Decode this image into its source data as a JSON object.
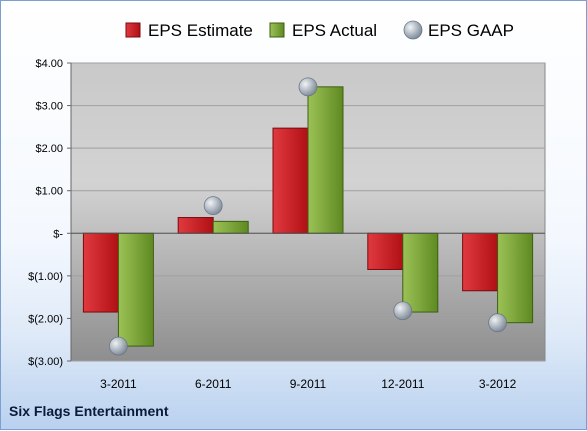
{
  "company": "Six Flags Entertainment",
  "colors": {
    "estimate": "#c8161d",
    "actual": "#6f9a2c",
    "gaap": "#9aa6b4"
  },
  "chart_data": {
    "type": "bar",
    "categories": [
      "3-2011",
      "6-2011",
      "9-2011",
      "12-2011",
      "3-2012"
    ],
    "series": [
      {
        "name": "EPS Estimate",
        "values": [
          -1.85,
          0.37,
          2.47,
          -0.85,
          -1.35
        ]
      },
      {
        "name": "EPS Actual",
        "values": [
          -2.65,
          0.28,
          3.44,
          -1.85,
          -2.1
        ]
      },
      {
        "name": "EPS GAAP",
        "type": "scatter",
        "values": [
          -2.65,
          0.65,
          3.44,
          -1.82,
          -2.1
        ]
      }
    ],
    "ylim": [
      -3,
      4
    ],
    "yticks": [
      4,
      3,
      2,
      1,
      0,
      -1,
      -2,
      -3
    ],
    "ytick_labels": [
      "$4.00",
      "$3.00",
      "$2.00",
      "$1.00",
      "$-",
      "$(1.00)",
      "$(2.00)",
      "$(3.00)"
    ],
    "legend_position": "top",
    "grid": true
  }
}
